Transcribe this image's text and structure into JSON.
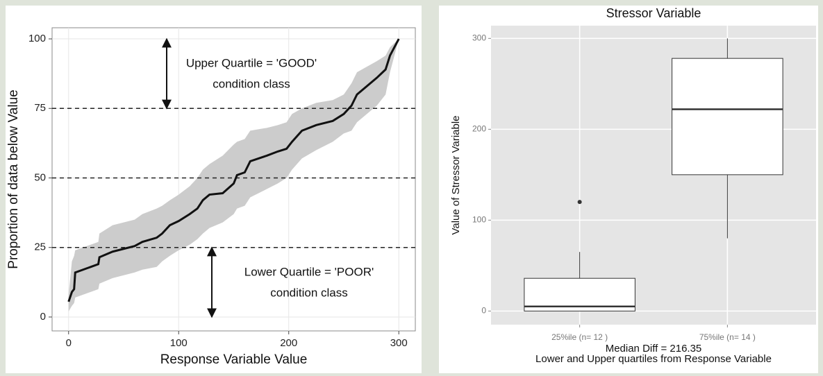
{
  "chart_data": [
    {
      "type": "line",
      "x_label": "Response Variable Value",
      "y_label": "Proportion of data below Value",
      "x": [
        0,
        3,
        5,
        6,
        20,
        27,
        28,
        40,
        60,
        67,
        80,
        85,
        92,
        100,
        110,
        117,
        122,
        128,
        140,
        150,
        153,
        160,
        165,
        180,
        190,
        198,
        203,
        212,
        225,
        240,
        250,
        257,
        262,
        280,
        288,
        292,
        300
      ],
      "series": [
        {
          "color": "#111111",
          "band_color": "#cccccc",
          "values": [
            5.5,
            9,
            10,
            16,
            18,
            19,
            21.5,
            23.5,
            25.5,
            27,
            28.5,
            30,
            33,
            34.5,
            37,
            39,
            42,
            44,
            44.5,
            48,
            51,
            52,
            56,
            58,
            59.5,
            60.5,
            63,
            67,
            69,
            70.5,
            73,
            76,
            80,
            86,
            89,
            94,
            100
          ],
          "upper": [
            8,
            20,
            22,
            24,
            26,
            27,
            30,
            33,
            35,
            37,
            39,
            40,
            42,
            44,
            47,
            50,
            53,
            55,
            58,
            62,
            63,
            64,
            67,
            68,
            69,
            70,
            73,
            75,
            77,
            78,
            80,
            84,
            88,
            92,
            94,
            97,
            100
          ],
          "lower": [
            2,
            4,
            5,
            7,
            9,
            10,
            12,
            14,
            16,
            17,
            18,
            20,
            22,
            24,
            26,
            28,
            30,
            32,
            34,
            37,
            39,
            40,
            43,
            46,
            48,
            50,
            53,
            57,
            60,
            63,
            66,
            67,
            70,
            76,
            80,
            88,
            100
          ]
        }
      ],
      "xlim": [
        -15,
        315
      ],
      "xticks": [
        0,
        100,
        200,
        300
      ],
      "ylim": [
        -5,
        104
      ],
      "yticks": [
        0,
        25,
        50,
        75,
        100
      ],
      "hlines": [
        25,
        50,
        75
      ],
      "annotations": [
        {
          "lines": [
            "Upper Quartile = 'GOOD'",
            "condition class"
          ],
          "from": 100,
          "to": 75
        },
        {
          "lines": [
            "Lower Quartile = 'POOR'",
            "condition class"
          ],
          "from": 25,
          "to": 0
        }
      ],
      "grid": true
    },
    {
      "type": "box",
      "title": "Stressor Variable",
      "y_label": "Value of Stressor Variable",
      "x_label_lines": [
        "Median Diff =  216.35",
        "Lower and Upper quartiles from Response Variable"
      ],
      "categories": [
        "25%ile (n= 12 )",
        "75%ile (n= 14 )"
      ],
      "boxes": [
        {
          "whislo": 0,
          "q1": 0,
          "med": 5,
          "q3": 36,
          "whishi": 65,
          "fliers": [
            120
          ]
        },
        {
          "whislo": 80,
          "q1": 150,
          "med": 222,
          "q3": 278,
          "whishi": 300,
          "fliers": []
        }
      ],
      "ylim": [
        -15,
        314
      ],
      "yticks": [
        0,
        100,
        200,
        300
      ],
      "background": "#e5e5e5",
      "grid": true
    }
  ]
}
